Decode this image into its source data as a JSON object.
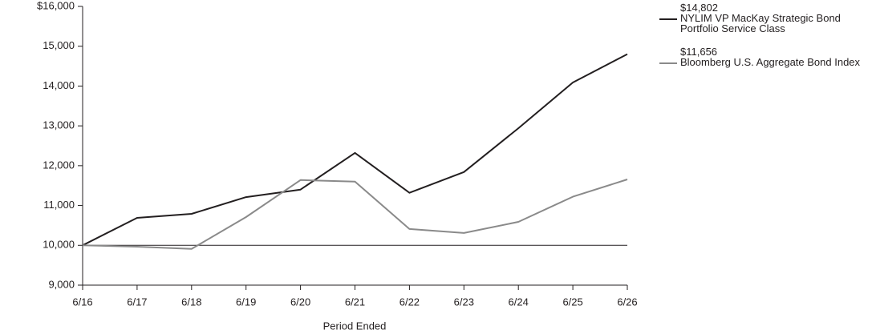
{
  "chart_data": {
    "type": "line",
    "x_label": "Period Ended",
    "categories": [
      "6/16",
      "6/17",
      "6/18",
      "6/19",
      "6/20",
      "6/21",
      "6/22",
      "6/23",
      "6/24",
      "6/25",
      "6/26"
    ],
    "series": [
      {
        "name": "NYLIM VP MacKay Strategic Bond Portfolio Service Class",
        "color": "#231f20",
        "values": [
          10000,
          10690,
          10790,
          11210,
          11400,
          12320,
          11320,
          11840,
          12940,
          14090,
          14802
        ],
        "value_labels": [
          null,
          null,
          null,
          null,
          null,
          null,
          null,
          null,
          null,
          null,
          "$14,802"
        ]
      },
      {
        "name": "Bloomberg U.S. Aggregate Bond Index",
        "color": "#8a8a8a",
        "values": [
          10000,
          9966,
          9910,
          10710,
          11640,
          11600,
          10410,
          10310,
          10590,
          11220,
          11656
        ],
        "value_labels": [
          null,
          null,
          null,
          null,
          null,
          null,
          null,
          null,
          null,
          null,
          "$11,656"
        ]
      }
    ],
    "reference_line": 10000,
    "ylim": [
      9000,
      16000
    ],
    "yticks": [
      {
        "value": 9000,
        "label": "9,000"
      },
      {
        "value": 10000,
        "label": "10,000"
      },
      {
        "value": 11000,
        "label": "11,000"
      },
      {
        "value": 12000,
        "label": "12,000"
      },
      {
        "value": 13000,
        "label": "13,000"
      },
      {
        "value": 14000,
        "label": "14,000"
      },
      {
        "value": 15000,
        "label": "15,000"
      },
      {
        "value": 16000,
        "label": "$16,000"
      }
    ],
    "legend": "right"
  }
}
